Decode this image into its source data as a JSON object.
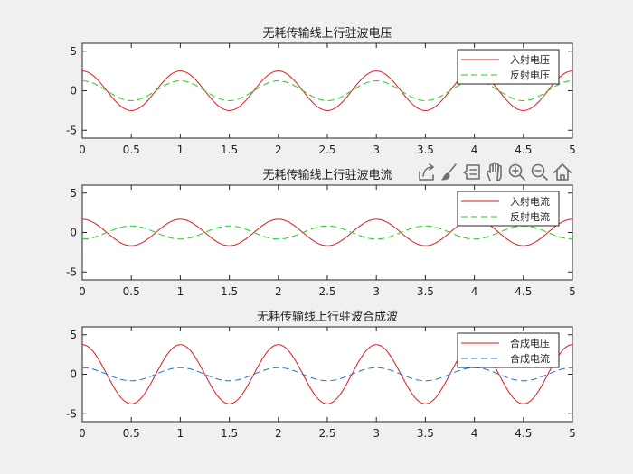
{
  "window": {
    "background": "#f0f0f0"
  },
  "toolbar": {
    "buttons": [
      {
        "name": "export-icon"
      },
      {
        "name": "brush-icon"
      },
      {
        "name": "datatip-icon"
      },
      {
        "name": "pan-hand-icon"
      },
      {
        "name": "zoom-in-icon"
      },
      {
        "name": "zoom-out-icon"
      },
      {
        "name": "home-icon"
      }
    ]
  },
  "chart_data": [
    {
      "type": "line",
      "title": "无耗传输线上行驻波电压",
      "xlim": [
        0,
        5
      ],
      "ylim": [
        -6,
        6
      ],
      "xticks": [
        0,
        0.5,
        1,
        1.5,
        2,
        2.5,
        3,
        3.5,
        4,
        4.5,
        5
      ],
      "xtick_labels": [
        "0",
        "0.5",
        "1",
        "1.5",
        "2",
        "2.5",
        "3",
        "3.5",
        "4",
        "4.5",
        "5"
      ],
      "yticks": [
        -5,
        0,
        5
      ],
      "ytick_labels": [
        "-5",
        "0",
        "5"
      ],
      "grid": false,
      "legend_position": "top-right",
      "series": [
        {
          "name": "入射电压",
          "amplitude": 2.5,
          "period": 1,
          "phase": "cos",
          "color": "#e31a1c",
          "dash": "solid"
        },
        {
          "name": "反射电压",
          "amplitude": 1.25,
          "period": 1,
          "phase": "cos",
          "color": "#1fcf1f",
          "dash": "dashed"
        }
      ]
    },
    {
      "type": "line",
      "title": "无耗传输线上行驻波电流",
      "xlim": [
        0,
        5
      ],
      "ylim": [
        -6,
        6
      ],
      "xticks": [
        0,
        0.5,
        1,
        1.5,
        2,
        2.5,
        3,
        3.5,
        4,
        4.5,
        5
      ],
      "xtick_labels": [
        "0",
        "0.5",
        "1",
        "1.5",
        "2",
        "2.5",
        "3",
        "3.5",
        "4",
        "4.5",
        "5"
      ],
      "yticks": [
        -5,
        0,
        5
      ],
      "ytick_labels": [
        "-5",
        "0",
        "5"
      ],
      "grid": false,
      "legend_position": "top-right",
      "series": [
        {
          "name": "入射电流",
          "amplitude": 1.67,
          "period": 1,
          "phase": "cos",
          "color": "#e31a1c",
          "dash": "solid"
        },
        {
          "name": "反射电流",
          "amplitude": -0.83,
          "period": 1,
          "phase": "cos",
          "color": "#1fcf1f",
          "dash": "dashed"
        }
      ]
    },
    {
      "type": "line",
      "title": "无耗传输线上行驻波合成波",
      "xlim": [
        0,
        5
      ],
      "ylim": [
        -6,
        6
      ],
      "xticks": [
        0,
        0.5,
        1,
        1.5,
        2,
        2.5,
        3,
        3.5,
        4,
        4.5,
        5
      ],
      "xtick_labels": [
        "0",
        "0.5",
        "1",
        "1.5",
        "2",
        "2.5",
        "3",
        "3.5",
        "4",
        "4.5",
        "5"
      ],
      "yticks": [
        -5,
        0,
        5
      ],
      "ytick_labels": [
        "-5",
        "0",
        "5"
      ],
      "grid": false,
      "legend_position": "top-right",
      "series": [
        {
          "name": "合成电压",
          "amplitude": 3.75,
          "period": 1,
          "phase": "cos",
          "color": "#e31a1c",
          "dash": "solid"
        },
        {
          "name": "合成电流",
          "amplitude": 0.83,
          "period": 1,
          "phase": "cos",
          "color": "#1f77d0",
          "dash": "dashed"
        }
      ]
    }
  ]
}
